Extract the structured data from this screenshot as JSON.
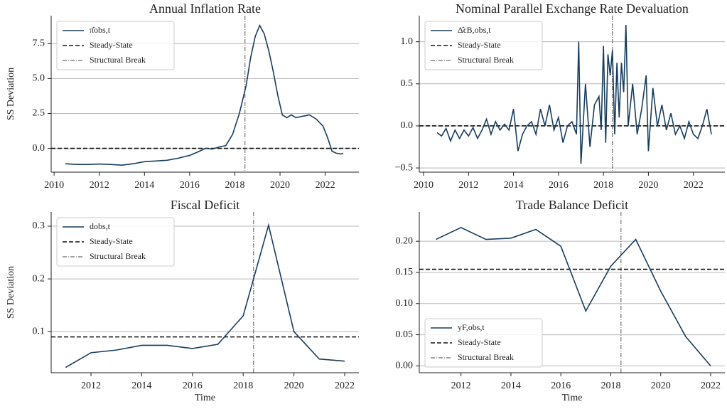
{
  "chart_data": [
    {
      "type": "line",
      "title": "Annual Inflation Rate",
      "ylabel": "SS Deviation",
      "x": [
        2010.5,
        2011,
        2011.5,
        2012,
        2012.5,
        2013,
        2013.5,
        2014,
        2014.5,
        2015,
        2015.5,
        2016,
        2016.3,
        2016.7,
        2017,
        2017.3,
        2017.6,
        2017.9,
        2018.2,
        2018.5,
        2018.7,
        2018.9,
        2019.1,
        2019.3,
        2019.5,
        2019.7,
        2019.9,
        2020.1,
        2020.3,
        2020.5,
        2020.7,
        2021,
        2021.3,
        2021.6,
        2021.9,
        2022.1,
        2022.3,
        2022.5,
        2022.7,
        2022.8
      ],
      "series": [
        {
          "name": "π̂obs,t",
          "color": "#173d5f",
          "values": [
            -1.1,
            -1.15,
            -1.15,
            -1.12,
            -1.15,
            -1.2,
            -1.1,
            -0.95,
            -0.9,
            -0.85,
            -0.7,
            -0.5,
            -0.3,
            0.0,
            -0.05,
            0.1,
            0.2,
            1.0,
            2.5,
            4.5,
            6.5,
            8.0,
            8.8,
            8.2,
            7.0,
            5.5,
            3.8,
            2.4,
            2.2,
            2.4,
            2.2,
            2.3,
            2.4,
            2.1,
            1.6,
            0.8,
            -0.2,
            -0.35,
            -0.4,
            -0.35
          ]
        }
      ],
      "steady_state": {
        "name": "Steady-State",
        "value": 0
      },
      "structural_break": {
        "name": "Structural Break",
        "value": 2018.45
      },
      "xlim": [
        2009.87,
        2023.49
      ],
      "ylim": [
        -1.7,
        9.5
      ],
      "xticks": [
        2010,
        2012,
        2014,
        2016,
        2018,
        2020,
        2022
      ],
      "yticks": [
        {
          "value": 0,
          "label": "0.0"
        },
        2.5,
        {
          "value": 5,
          "label": "5.0"
        },
        7.5
      ],
      "grid": true,
      "legend": "upper left"
    },
    {
      "type": "line",
      "title": "Nominal Parallel Exchange Rate Devaluation",
      "x": [
        2010.6,
        2010.8,
        2011.0,
        2011.2,
        2011.4,
        2011.6,
        2011.8,
        2012.0,
        2012.2,
        2012.4,
        2012.6,
        2012.8,
        2013.0,
        2013.2,
        2013.4,
        2013.6,
        2013.8,
        2014.0,
        2014.2,
        2014.4,
        2014.6,
        2014.8,
        2015.0,
        2015.2,
        2015.4,
        2015.6,
        2015.8,
        2016.0,
        2016.2,
        2016.4,
        2016.6,
        2016.8,
        2016.9,
        2017.0,
        2017.2,
        2017.4,
        2017.6,
        2017.8,
        2017.9,
        2018.0,
        2018.1,
        2018.2,
        2018.3,
        2018.4,
        2018.5,
        2018.6,
        2018.7,
        2018.8,
        2018.9,
        2019.0,
        2019.1,
        2019.3,
        2019.5,
        2019.7,
        2019.9,
        2020.0,
        2020.2,
        2020.4,
        2020.6,
        2020.8,
        2021.0,
        2021.2,
        2021.4,
        2021.6,
        2021.8,
        2022.0,
        2022.2,
        2022.4,
        2022.6,
        2022.8
      ],
      "series": [
        {
          "name": "Δ̂ϵB,obs,t",
          "color": "#173d5f",
          "values": [
            -0.08,
            -0.12,
            -0.03,
            -0.18,
            -0.05,
            -0.15,
            -0.05,
            -0.12,
            -0.02,
            -0.15,
            -0.05,
            0.08,
            -0.1,
            0.05,
            -0.05,
            0.02,
            -0.05,
            0.2,
            -0.3,
            -0.1,
            0.0,
            0.05,
            -0.1,
            0.2,
            0.0,
            0.25,
            -0.05,
            0.1,
            -0.2,
            0.0,
            0.05,
            -0.1,
            1.0,
            -0.45,
            0.5,
            -0.25,
            0.25,
            0.35,
            -0.05,
            0.95,
            -0.2,
            0.85,
            0.6,
            0.9,
            -0.1,
            0.75,
            0.1,
            0.75,
            0.4,
            1.2,
            0.0,
            0.5,
            -0.1,
            0.2,
            0.6,
            -0.3,
            0.45,
            0.0,
            0.25,
            -0.05,
            0.15,
            -0.1,
            0.0,
            -0.15,
            0.05,
            -0.1,
            -0.15,
            0.0,
            0.2,
            -0.1
          ]
        }
      ],
      "steady_state": {
        "name": "Steady-State",
        "value": 0
      },
      "structural_break": {
        "name": "Structural Break",
        "value": 2018.4
      },
      "xlim": [
        2009.81,
        2023.4
      ],
      "ylim": [
        -0.55,
        1.31
      ],
      "xticks": [
        2010,
        2012,
        2014,
        2016,
        2018,
        2020,
        2022
      ],
      "yticks": [
        {
          "value": -0.5,
          "label": "−0.5"
        },
        {
          "value": 0,
          "label": "0.0"
        },
        0.5,
        {
          "value": 1,
          "label": "1.0"
        }
      ],
      "grid": true,
      "legend": "upper left"
    },
    {
      "type": "line",
      "title": "Fiscal Deficit",
      "ylabel": "SS Deviation",
      "xlabel": "Time",
      "x": [
        2011,
        2012,
        2013,
        2014,
        2015,
        2016,
        2017,
        2018,
        2019,
        2020,
        2021,
        2022
      ],
      "series": [
        {
          "name": "dobs,t",
          "color": "#173d5f",
          "values": [
            0.032,
            0.06,
            0.065,
            0.074,
            0.074,
            0.068,
            0.076,
            0.13,
            0.302,
            0.1,
            0.048,
            0.044
          ]
        }
      ],
      "steady_state": {
        "name": "Steady-State",
        "value": 0.09
      },
      "structural_break": {
        "name": "Structural Break",
        "value": 2018.41
      },
      "xlim": [
        2010.43,
        2022.56
      ],
      "ylim": [
        0.022,
        0.327
      ],
      "xticks": [
        2012,
        2014,
        2016,
        2018,
        2020,
        2022
      ],
      "yticks": [
        0.1,
        0.2,
        0.3
      ],
      "grid": true,
      "legend": "upper left"
    },
    {
      "type": "line",
      "title": "Trade Balance Deficit",
      "xlabel": "Time",
      "x": [
        2011,
        2012,
        2013,
        2014,
        2015,
        2016,
        2017,
        2018,
        2019,
        2020,
        2021,
        2022
      ],
      "series": [
        {
          "name": "yF,obs,t",
          "color": "#173d5f",
          "values": [
            0.203,
            0.222,
            0.203,
            0.205,
            0.219,
            0.192,
            0.088,
            0.16,
            0.203,
            0.12,
            0.047,
            0.0
          ]
        }
      ],
      "steady_state": {
        "name": "Steady-State",
        "value": 0.155
      },
      "structural_break": {
        "name": "Structural Break",
        "value": 2018.41
      },
      "xlim": [
        2010.33,
        2022.57
      ],
      "ylim": [
        -0.011,
        0.247
      ],
      "xticks": [
        2012,
        2014,
        2016,
        2018,
        2020,
        2022
      ],
      "yticks": [
        {
          "value": 0,
          "label": "0.00"
        },
        {
          "value": 0.05,
          "label": "0.05"
        },
        {
          "value": 0.1,
          "label": "0.10"
        },
        {
          "value": 0.15,
          "label": "0.15"
        },
        {
          "value": 0.2,
          "label": "0.20"
        }
      ],
      "grid": true,
      "legend": "lower left"
    }
  ]
}
